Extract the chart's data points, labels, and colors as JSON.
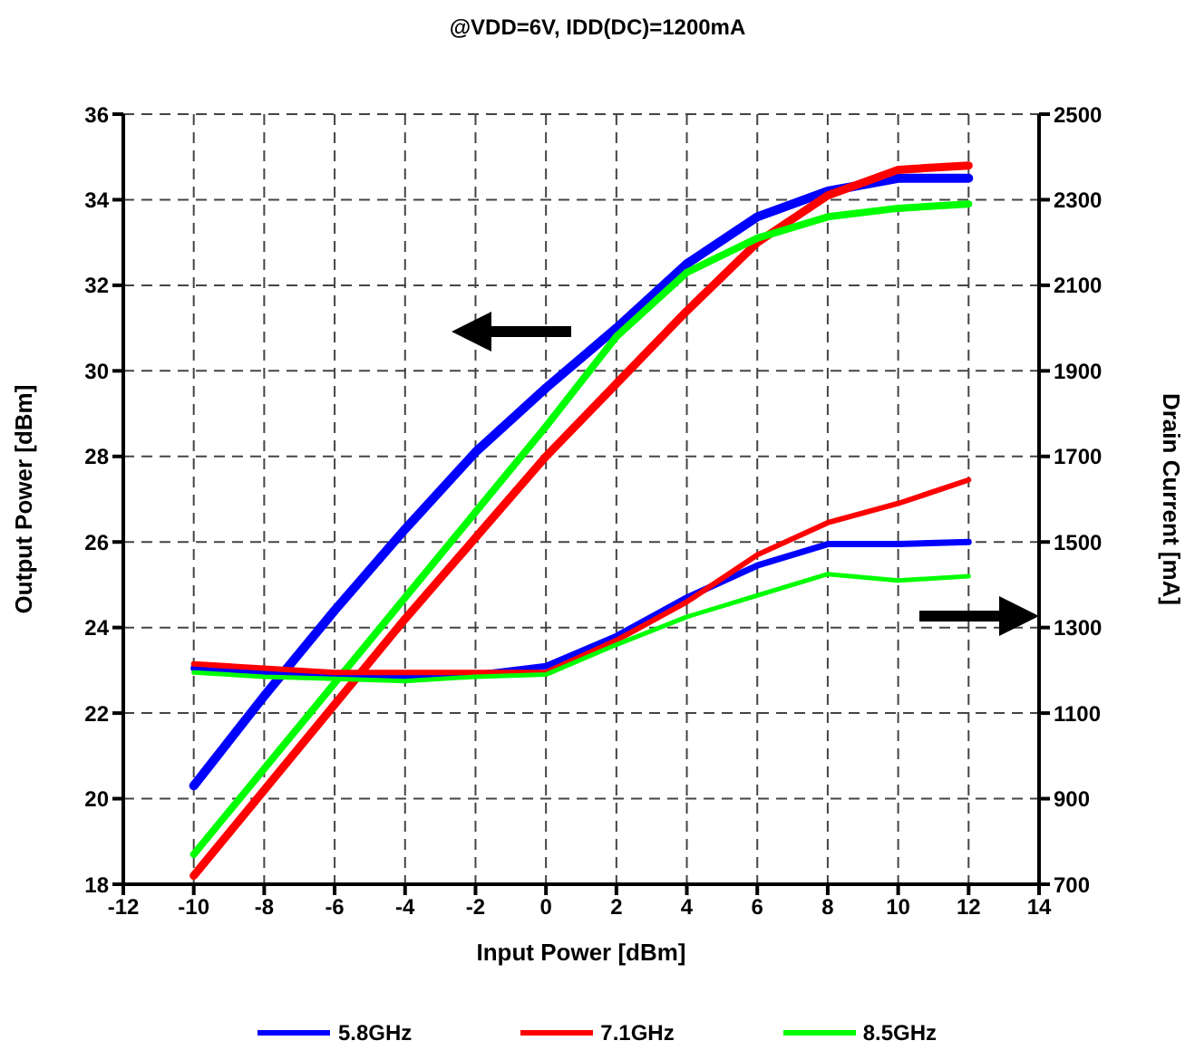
{
  "chart_data": {
    "type": "line",
    "title": "@VDD=6V, IDD(DC)=1200mA",
    "xlabel": "Input Power  [dBm]",
    "ylabel": "Output Power  [dBm]",
    "y2label": "Drain Current  [mA]",
    "x": [
      -10,
      -8,
      -6,
      -4,
      -2,
      0,
      2,
      4,
      6,
      8,
      10,
      12
    ],
    "series": [
      {
        "name": "5.8GHz",
        "color": "#0000ff",
        "values": [
          20.3,
          22.4,
          24.4,
          26.3,
          28.1,
          29.6,
          31.0,
          32.5,
          33.6,
          34.2,
          34.5,
          34.5
        ]
      },
      {
        "name": "7.1GHz",
        "color": "#ff0000",
        "values": [
          18.2,
          20.2,
          22.2,
          24.2,
          26.1,
          28.0,
          29.7,
          31.4,
          33.0,
          34.1,
          34.7,
          34.8
        ]
      },
      {
        "name": "8.5GHz",
        "color": "#00ff00",
        "values": [
          18.7,
          20.7,
          22.7,
          24.7,
          26.7,
          28.7,
          30.8,
          32.3,
          33.1,
          33.6,
          33.8,
          33.9
        ]
      },
      {
        "color": "#0000ff",
        "axis": "y2",
        "values": [
          1205,
          1195,
          1190,
          1185,
          1190,
          1210,
          1280,
          1370,
          1445,
          1495,
          1495,
          1500
        ]
      },
      {
        "color": "#ff0000",
        "axis": "y2",
        "values": [
          1215,
          1205,
          1195,
          1195,
          1195,
          1195,
          1270,
          1360,
          1470,
          1545,
          1590,
          1645
        ]
      },
      {
        "color": "#00ff00",
        "axis": "y2",
        "values": [
          1195,
          1185,
          1180,
          1175,
          1185,
          1190,
          1260,
          1325,
          1375,
          1425,
          1410,
          1420
        ]
      }
    ],
    "xlim": [
      -12,
      14
    ],
    "xticks": [
      -12,
      -10,
      -8,
      -6,
      -4,
      -2,
      0,
      2,
      4,
      6,
      8,
      10,
      12,
      14
    ],
    "ylim": [
      18,
      36
    ],
    "yticks": [
      18,
      20,
      22,
      24,
      26,
      28,
      30,
      32,
      34,
      36
    ],
    "y2lim": [
      700,
      2500
    ],
    "y2ticks": [
      700,
      900,
      1100,
      1300,
      1500,
      1700,
      1900,
      2100,
      2300,
      2500
    ],
    "grid": true,
    "legend": "bottom",
    "marker": "none",
    "line_style": "solid"
  }
}
